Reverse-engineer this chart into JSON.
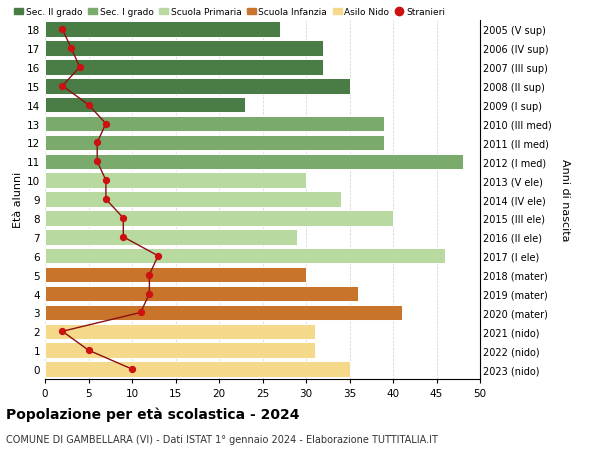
{
  "ages": [
    18,
    17,
    16,
    15,
    14,
    13,
    12,
    11,
    10,
    9,
    8,
    7,
    6,
    5,
    4,
    3,
    2,
    1,
    0
  ],
  "years_labels": [
    "2005 (V sup)",
    "2006 (IV sup)",
    "2007 (III sup)",
    "2008 (II sup)",
    "2009 (I sup)",
    "2010 (III med)",
    "2011 (II med)",
    "2012 (I med)",
    "2013 (V ele)",
    "2014 (IV ele)",
    "2015 (III ele)",
    "2016 (II ele)",
    "2017 (I ele)",
    "2018 (mater)",
    "2019 (mater)",
    "2020 (mater)",
    "2021 (nido)",
    "2022 (nido)",
    "2023 (nido)"
  ],
  "bar_values": [
    27,
    32,
    32,
    35,
    23,
    39,
    39,
    48,
    30,
    34,
    40,
    29,
    46,
    30,
    36,
    41,
    31,
    31,
    35
  ],
  "bar_colors": [
    "#4a7c45",
    "#4a7c45",
    "#4a7c45",
    "#4a7c45",
    "#4a7c45",
    "#7aab6d",
    "#7aab6d",
    "#7aab6d",
    "#b8d9a0",
    "#b8d9a0",
    "#b8d9a0",
    "#b8d9a0",
    "#b8d9a0",
    "#c8742a",
    "#c8742a",
    "#c8742a",
    "#f5d98b",
    "#f5d98b",
    "#f5d98b"
  ],
  "stranieri_values": [
    2,
    3,
    4,
    2,
    5,
    7,
    6,
    6,
    7,
    7,
    9,
    9,
    13,
    12,
    12,
    11,
    2,
    5,
    10
  ],
  "legend_labels": [
    "Sec. II grado",
    "Sec. I grado",
    "Scuola Primaria",
    "Scuola Infanzia",
    "Asilo Nido",
    "Stranieri"
  ],
  "legend_colors": [
    "#4a7c45",
    "#7aab6d",
    "#b8d9a0",
    "#c8742a",
    "#f5d98b",
    "#cc1111"
  ],
  "title": "Popolazione per età scolastica - 2024",
  "subtitle": "COMUNE DI GAMBELLARA (VI) - Dati ISTAT 1° gennaio 2024 - Elaborazione TUTTITALIA.IT",
  "ylabel_left": "Età alunni",
  "ylabel_right": "Anni di nascita",
  "xlim": [
    0,
    50
  ],
  "xticks": [
    0,
    5,
    10,
    15,
    20,
    25,
    30,
    35,
    40,
    45,
    50
  ],
  "background_color": "#ffffff",
  "grid_color": "#d0d0d0"
}
